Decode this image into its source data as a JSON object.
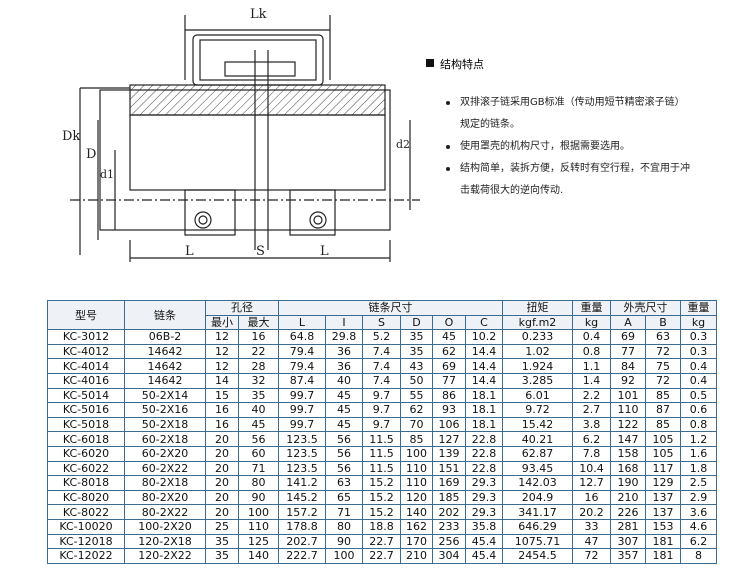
{
  "drawing": {
    "labels": {
      "lk": "Lk",
      "dk": "Dk",
      "d": "D",
      "d1": "d1",
      "d2": "d2",
      "l_left": "L",
      "s": "S",
      "l_right": "L"
    }
  },
  "features": {
    "title": "结构特点",
    "items": [
      "双排滚子链采用GB标准（传动用短节精密滚子链）规定的链条。",
      "使用罩壳的机构尺寸，根据需要选用。",
      "结构简单，装拆方便，反转时有空行程，不宜用于冲击载荷很大的逆向传动."
    ]
  },
  "table": {
    "h1": {
      "model": "型号",
      "chain": "链条",
      "bore": "孔径",
      "chain_dims": "链条尺寸",
      "torque": "扭矩",
      "weight": "重量",
      "housing": "外壳尺寸",
      "housing_weight": "重量"
    },
    "h2": [
      "最小",
      "最大",
      "L",
      "I",
      "S",
      "D",
      "O",
      "C",
      "kgf.m2",
      "kg",
      "A",
      "B",
      "kg"
    ],
    "rows": [
      [
        "KC-3012",
        "06B-2",
        "12",
        "16",
        "64.8",
        "29.8",
        "5.2",
        "35",
        "45",
        "10.2",
        "0.233",
        "0.4",
        "69",
        "63",
        "0.3"
      ],
      [
        "KC-4012",
        "14642",
        "12",
        "22",
        "79.4",
        "36",
        "7.4",
        "35",
        "62",
        "14.4",
        "1.02",
        "0.8",
        "77",
        "72",
        "0.3"
      ],
      [
        "KC-4014",
        "14642",
        "12",
        "28",
        "79.4",
        "36",
        "7.4",
        "43",
        "69",
        "14.4",
        "1.924",
        "1.1",
        "84",
        "75",
        "0.4"
      ],
      [
        "KC-4016",
        "14642",
        "14",
        "32",
        "87.4",
        "40",
        "7.4",
        "50",
        "77",
        "14.4",
        "3.285",
        "1.4",
        "92",
        "72",
        "0.4"
      ],
      [
        "KC-5014",
        "50-2X14",
        "15",
        "35",
        "99.7",
        "45",
        "9.7",
        "55",
        "86",
        "18.1",
        "6.01",
        "2.2",
        "101",
        "85",
        "0.5"
      ],
      [
        "KC-5016",
        "50-2X16",
        "16",
        "40",
        "99.7",
        "45",
        "9.7",
        "62",
        "93",
        "18.1",
        "9.72",
        "2.7",
        "110",
        "87",
        "0.6"
      ],
      [
        "KC-5018",
        "50-2X18",
        "16",
        "45",
        "99.7",
        "45",
        "9.7",
        "70",
        "106",
        "18.1",
        "15.42",
        "3.8",
        "122",
        "85",
        "0.8"
      ],
      [
        "KC-6018",
        "60-2X18",
        "20",
        "56",
        "123.5",
        "56",
        "11.5",
        "85",
        "127",
        "22.8",
        "40.21",
        "6.2",
        "147",
        "105",
        "1.2"
      ],
      [
        "KC-6020",
        "60-2X20",
        "20",
        "60",
        "123.5",
        "56",
        "11.5",
        "100",
        "139",
        "22.8",
        "62.87",
        "7.8",
        "158",
        "105",
        "1.6"
      ],
      [
        "KC-6022",
        "60-2X22",
        "20",
        "71",
        "123.5",
        "56",
        "11.5",
        "110",
        "151",
        "22.8",
        "93.45",
        "10.4",
        "168",
        "117",
        "1.8"
      ],
      [
        "KC-8018",
        "80-2X18",
        "20",
        "80",
        "141.2",
        "63",
        "15.2",
        "110",
        "169",
        "29.3",
        "142.03",
        "12.7",
        "190",
        "129",
        "2.5"
      ],
      [
        "KC-8020",
        "80-2X20",
        "20",
        "90",
        "145.2",
        "65",
        "15.2",
        "120",
        "185",
        "29.3",
        "204.9",
        "16",
        "210",
        "137",
        "2.9"
      ],
      [
        "KC-8022",
        "80-2X22",
        "20",
        "100",
        "157.2",
        "71",
        "15.2",
        "140",
        "202",
        "29.3",
        "341.17",
        "20.2",
        "226",
        "137",
        "3.6"
      ],
      [
        "KC-10020",
        "100-2X20",
        "25",
        "110",
        "178.8",
        "80",
        "18.8",
        "162",
        "233",
        "35.8",
        "646.29",
        "33",
        "281",
        "153",
        "4.6"
      ],
      [
        "KC-12018",
        "120-2X18",
        "35",
        "125",
        "202.7",
        "90",
        "22.7",
        "170",
        "256",
        "45.4",
        "1075.71",
        "47",
        "307",
        "181",
        "6.2"
      ],
      [
        "KC-12022",
        "120-2X22",
        "35",
        "140",
        "222.7",
        "100",
        "22.7",
        "210",
        "304",
        "45.4",
        "2454.5",
        "72",
        "357",
        "181",
        "8"
      ]
    ]
  }
}
